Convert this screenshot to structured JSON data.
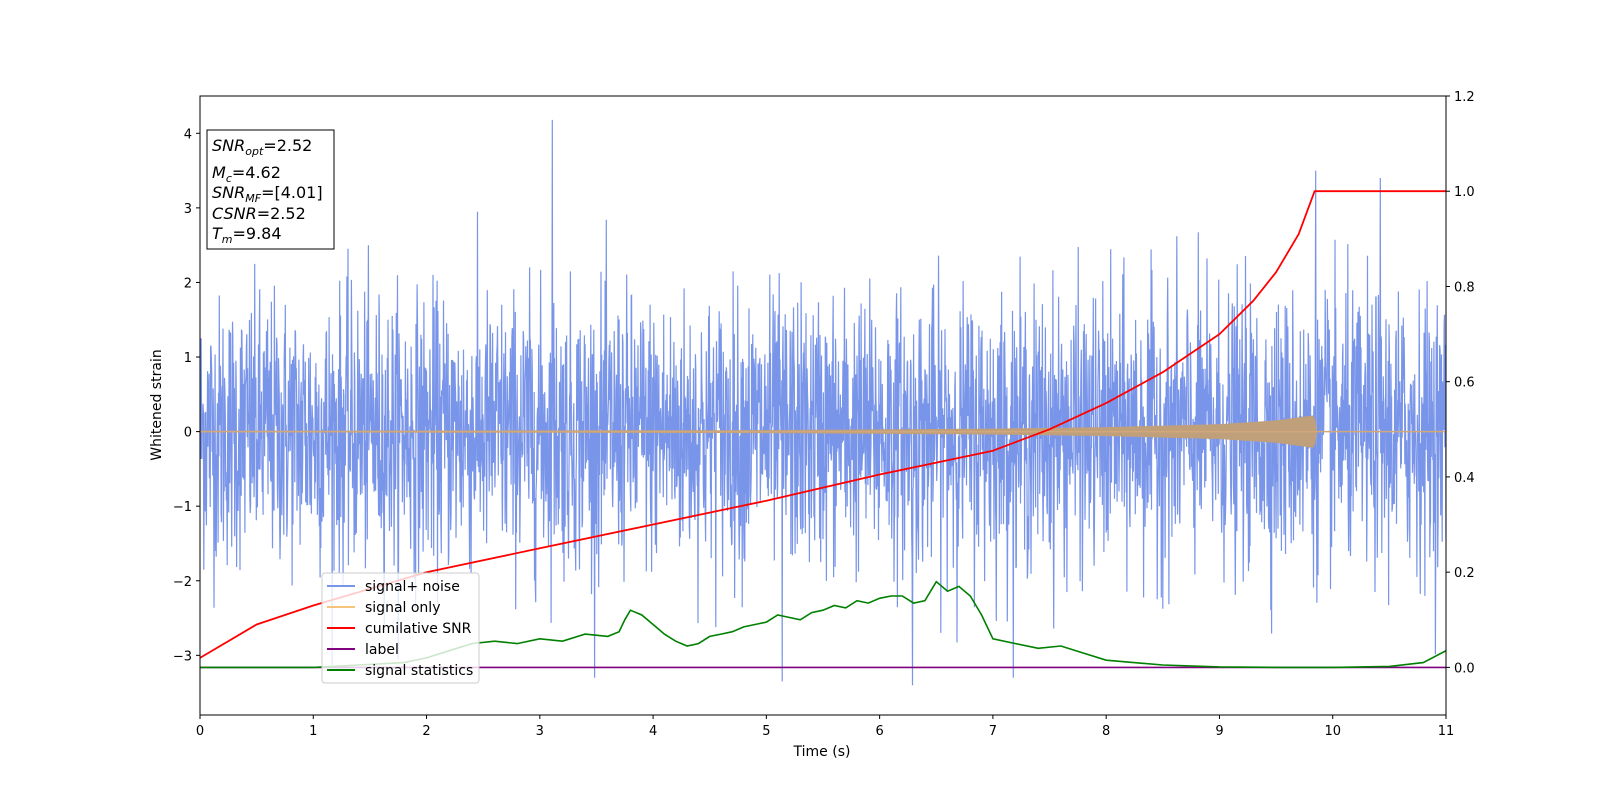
{
  "chart_data": {
    "type": "line",
    "xlabel": "Time (s)",
    "ylabel": "Whitened strain",
    "xlim": [
      0,
      11
    ],
    "ylim": [
      -3.8,
      4.5
    ],
    "y2lim": [
      -0.1,
      1.2
    ],
    "grid": false,
    "legend_position": "lower-left",
    "x_ticks": [
      0,
      1,
      2,
      3,
      4,
      5,
      6,
      7,
      8,
      9,
      10,
      11
    ],
    "y_ticks": [
      -3,
      -2,
      -1,
      0,
      1,
      2,
      3,
      4
    ],
    "y2_ticks": [
      0.0,
      0.2,
      0.4,
      0.6,
      0.8,
      1.0,
      1.2
    ],
    "x_tick_labels": [
      "0",
      "1",
      "2",
      "3",
      "4",
      "5",
      "6",
      "7",
      "8",
      "9",
      "10",
      "11"
    ],
    "y_tick_labels": [
      "−3",
      "−2",
      "−1",
      "0",
      "1",
      "2",
      "3",
      "4"
    ],
    "y2_tick_labels": [
      "0.0",
      "0.2",
      "0.4",
      "0.6",
      "0.8",
      "1.0",
      "1.2"
    ],
    "annotation": {
      "lines": [
        {
          "base": "SNR",
          "sub": "opt",
          "value": "=2.52"
        },
        {
          "base": "M",
          "sub": "c",
          "value": "=4.62"
        },
        {
          "base": "SNR",
          "sub": "MF",
          "value": "=[4.01]"
        },
        {
          "base": "CSNR",
          "sub": "",
          "value": "=2.52"
        },
        {
          "base": "T",
          "sub": "m",
          "value": "=9.84"
        }
      ]
    },
    "series": [
      {
        "name": "signal+ noise",
        "color": "#7995e9",
        "axis": "left",
        "note": "gaussian-like whitened noise, sigma ~0.9, spikes to about ±3.5",
        "peaks": [
          [
            3.11,
            4.18
          ],
          [
            9.85,
            3.5
          ],
          [
            10.42,
            3.4
          ],
          [
            6.29,
            -3.4
          ],
          [
            5.14,
            -3.35
          ]
        ]
      },
      {
        "name": "signal only",
        "color": "#f5c47a",
        "axis": "left",
        "envelope": {
          "x": [
            0,
            5,
            7,
            8,
            9,
            9.5,
            9.84,
            9.86,
            11
          ],
          "amp": [
            0.01,
            0.02,
            0.04,
            0.06,
            0.1,
            0.15,
            0.22,
            0,
            0
          ]
        }
      },
      {
        "name": "cumilative SNR",
        "color": "#ff0000",
        "axis": "right",
        "x": [
          0,
          0.5,
          1,
          2,
          3,
          4,
          5,
          6,
          7,
          7.5,
          8,
          8.5,
          9,
          9.3,
          9.5,
          9.7,
          9.84,
          11
        ],
        "values": [
          0.02,
          0.09,
          0.13,
          0.2,
          0.25,
          0.3,
          0.35,
          0.405,
          0.455,
          0.5,
          0.555,
          0.62,
          0.7,
          0.77,
          0.83,
          0.91,
          1.0,
          1.0
        ]
      },
      {
        "name": "label",
        "color": "#800080",
        "axis": "right",
        "x": [
          0,
          11
        ],
        "values": [
          0.0,
          0.0
        ]
      },
      {
        "name": "signal statistics",
        "color": "#008000",
        "axis": "right",
        "x": [
          0,
          1,
          1.8,
          2,
          2.2,
          2.4,
          2.6,
          2.8,
          3.0,
          3.2,
          3.4,
          3.6,
          3.7,
          3.75,
          3.8,
          3.9,
          4.0,
          4.1,
          4.2,
          4.3,
          4.4,
          4.5,
          4.6,
          4.7,
          4.8,
          4.9,
          5.0,
          5.1,
          5.2,
          5.3,
          5.4,
          5.5,
          5.6,
          5.7,
          5.8,
          5.9,
          6.0,
          6.1,
          6.2,
          6.3,
          6.4,
          6.5,
          6.6,
          6.7,
          6.8,
          6.9,
          7.0,
          7.2,
          7.4,
          7.6,
          7.8,
          8.0,
          8.5,
          9.0,
          9.5,
          10.0,
          10.5,
          10.8,
          11
        ],
        "values": [
          0.0,
          0.0,
          0.01,
          0.02,
          0.035,
          0.05,
          0.055,
          0.05,
          0.06,
          0.055,
          0.07,
          0.065,
          0.075,
          0.1,
          0.12,
          0.11,
          0.09,
          0.07,
          0.055,
          0.045,
          0.05,
          0.065,
          0.07,
          0.075,
          0.085,
          0.09,
          0.095,
          0.11,
          0.105,
          0.1,
          0.115,
          0.12,
          0.13,
          0.125,
          0.14,
          0.135,
          0.145,
          0.15,
          0.15,
          0.135,
          0.14,
          0.18,
          0.16,
          0.17,
          0.15,
          0.11,
          0.06,
          0.05,
          0.04,
          0.045,
          0.03,
          0.015,
          0.005,
          0.001,
          0.0,
          0.0,
          0.002,
          0.01,
          0.035
        ]
      }
    ]
  }
}
